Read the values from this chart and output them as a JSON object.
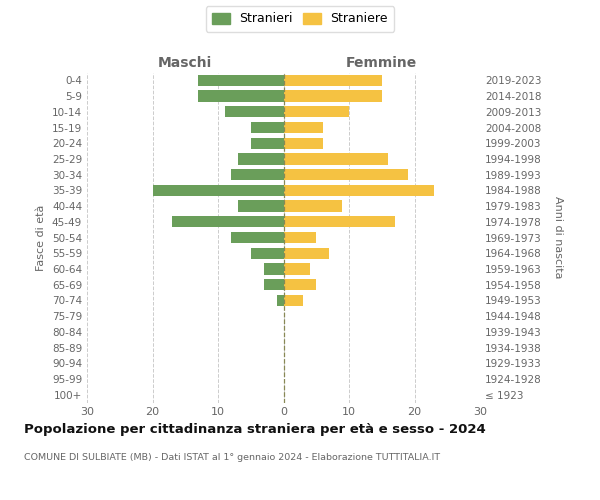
{
  "age_groups": [
    "100+",
    "95-99",
    "90-94",
    "85-89",
    "80-84",
    "75-79",
    "70-74",
    "65-69",
    "60-64",
    "55-59",
    "50-54",
    "45-49",
    "40-44",
    "35-39",
    "30-34",
    "25-29",
    "20-24",
    "15-19",
    "10-14",
    "5-9",
    "0-4"
  ],
  "birth_years": [
    "≤ 1923",
    "1924-1928",
    "1929-1933",
    "1934-1938",
    "1939-1943",
    "1944-1948",
    "1949-1953",
    "1954-1958",
    "1959-1963",
    "1964-1968",
    "1969-1973",
    "1974-1978",
    "1979-1983",
    "1984-1988",
    "1989-1993",
    "1994-1998",
    "1999-2003",
    "2004-2008",
    "2009-2013",
    "2014-2018",
    "2019-2023"
  ],
  "males": [
    0,
    0,
    0,
    0,
    0,
    0,
    1,
    3,
    3,
    5,
    8,
    17,
    7,
    20,
    8,
    7,
    5,
    5,
    9,
    13,
    13
  ],
  "females": [
    0,
    0,
    0,
    0,
    0,
    0,
    3,
    5,
    4,
    7,
    5,
    17,
    9,
    23,
    19,
    16,
    6,
    6,
    10,
    15,
    15
  ],
  "male_color": "#6a9e5a",
  "female_color": "#f5c242",
  "background_color": "#ffffff",
  "grid_color": "#cccccc",
  "title": "Popolazione per cittadinanza straniera per età e sesso - 2024",
  "subtitle": "COMUNE DI SULBIATE (MB) - Dati ISTAT al 1° gennaio 2024 - Elaborazione TUTTITALIA.IT",
  "legend_male": "Stranieri",
  "legend_female": "Straniere",
  "header_left": "Maschi",
  "header_right": "Femmine",
  "ylabel_left": "Fasce di età",
  "ylabel_right": "Anni di nascita",
  "xlim": 30
}
